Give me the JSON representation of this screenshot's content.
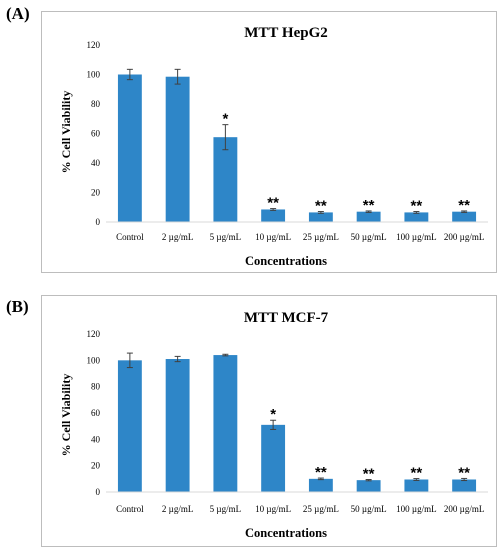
{
  "panels": [
    {
      "label": "(A)"
    },
    {
      "label": "(B)"
    }
  ],
  "chart_data": [
    {
      "type": "bar",
      "title": "MTT HepG2",
      "xlabel": "Concentrations",
      "ylabel": "% Cell Viability",
      "ylim": [
        0,
        120
      ],
      "yticks": [
        0,
        20,
        40,
        60,
        80,
        100,
        120
      ],
      "categories": [
        "Control",
        "2 µg/mL",
        "5 µg/mL",
        "10 µg/mL",
        "25 µg/mL",
        "50 µg/mL",
        "100 µg/mL",
        "200 µg/mL"
      ],
      "values": [
        100,
        98.5,
        57.5,
        8.5,
        6.5,
        7,
        6.5,
        7
      ],
      "errors": [
        3.5,
        5,
        8.5,
        0.6,
        0.6,
        0.5,
        0.6,
        0.5
      ],
      "significance": [
        "",
        "",
        "*",
        "**",
        "**",
        "**",
        "**",
        "**"
      ],
      "color": "#2e86c8",
      "grid": false
    },
    {
      "type": "bar",
      "title": "MTT MCF-7",
      "xlabel": "Concentrations",
      "ylabel": "% Cell Viability",
      "ylim": [
        0,
        120
      ],
      "yticks": [
        0,
        20,
        40,
        60,
        80,
        100,
        120
      ],
      "categories": [
        "Control",
        "2 µg/mL",
        "5 µg/mL",
        "10 µg/mL",
        "25 µg/mL",
        "50 µg/mL",
        "100 µg/mL",
        "200 µg/mL"
      ],
      "values": [
        100,
        101,
        104,
        51,
        10,
        9,
        9.5,
        9.5
      ],
      "errors": [
        5.5,
        2,
        0.6,
        3.5,
        0.6,
        0.5,
        0.7,
        0.8
      ],
      "significance": [
        "",
        "",
        "",
        "*",
        "**",
        "**",
        "**",
        "**"
      ],
      "color": "#2e86c8",
      "grid": false
    }
  ]
}
